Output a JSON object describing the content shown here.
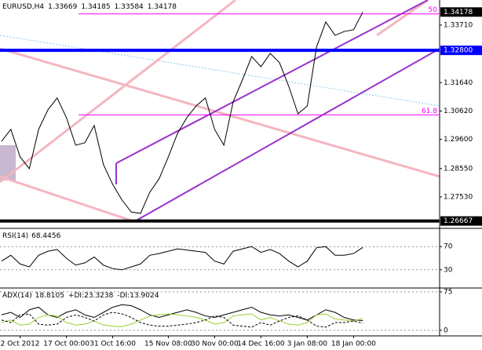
{
  "chart_data": [
    {
      "type": "line",
      "title": "EURUSD,H4",
      "ohlc": [
        1.33669,
        1.34185,
        1.33584,
        1.34178
      ],
      "categories": [
        null,
        null,
        "2 Oct 2012",
        null,
        null,
        null,
        null,
        "17 Oct 00:00",
        null,
        null,
        null,
        null,
        "31 Oct 16:00",
        null,
        null,
        null,
        null,
        null,
        "15 Nov 08:00",
        null,
        null,
        null,
        null,
        "30 Nov 00:00",
        null,
        null,
        null,
        null,
        "14 Dec 16:00",
        null,
        null,
        null,
        null,
        "3 Jan 08:00",
        null,
        null,
        null,
        null,
        "18 Jan 00:00",
        null
      ],
      "color": "#000000",
      "values": [
        1.2953,
        1.2996,
        1.2897,
        1.2855,
        1.2996,
        1.3066,
        1.3109,
        1.3038,
        1.2939,
        1.2948,
        1.301,
        1.2869,
        1.2798,
        1.2742,
        1.2699,
        1.2694,
        1.277,
        1.2818,
        1.2897,
        1.2982,
        1.3038,
        1.308,
        1.3109,
        1.2996,
        1.2939,
        1.3095,
        1.3174,
        1.3258,
        1.3221,
        1.3269,
        1.3236,
        1.3151,
        1.3052,
        1.308,
        1.3292,
        1.3382,
        1.3334,
        1.3348,
        1.3354,
        1.34178
      ],
      "ylim": [
        1.2643,
        1.3461
      ],
      "yticks": [
        {
          "value": 1.3371,
          "label": "1.33710"
        },
        {
          "value": 1.3164,
          "label": "1.31640"
        },
        {
          "value": 1.3062,
          "label": "1.30620"
        },
        {
          "value": 1.296,
          "label": "1.29600"
        },
        {
          "value": 1.2855,
          "label": "1.28550"
        },
        {
          "value": 1.2753,
          "label": "1.27530"
        }
      ],
      "hlines": [
        {
          "value": 1.328,
          "color": "#0000ff",
          "style": "thick"
        },
        {
          "value": 1.26667,
          "color": "#000000",
          "style": "thick"
        }
      ],
      "fib_color": "#ff00ff",
      "fib_levels": [
        {
          "level": 50,
          "value": 1.3411
        },
        {
          "level": 61.8,
          "value": 1.3048
        }
      ],
      "price_labels": [
        {
          "value": 1.34178,
          "color": "#000000"
        },
        {
          "value": 1.328,
          "label": "1.32800",
          "color": "#0000ff"
        },
        {
          "value": 1.26667,
          "color": "#000000"
        }
      ]
    },
    {
      "type": "line",
      "title": "RSI(14)",
      "color": "#000000",
      "values": [
        45,
        55,
        40,
        35,
        55,
        62,
        65,
        50,
        38,
        42,
        52,
        38,
        32,
        30,
        35,
        40,
        55,
        58,
        62,
        66,
        64,
        62,
        60,
        45,
        40,
        62,
        66,
        70,
        60,
        65,
        58,
        45,
        35,
        45,
        68,
        70,
        55,
        55,
        58,
        68.4456
      ],
      "ylim": [
        0,
        100
      ],
      "yticks": [
        70,
        30
      ],
      "grid": true
    },
    {
      "type": "line",
      "ylim": [
        -11,
        81
      ],
      "yticks": [
        75,
        0
      ],
      "grid": true,
      "series": [
        {
          "name": "ADX(14)",
          "color": "#000000",
          "dash": false,
          "values": [
            30,
            35,
            25,
            40,
            45,
            30,
            25,
            35,
            40,
            30,
            25,
            35,
            45,
            50,
            48,
            40,
            30,
            25,
            30,
            35,
            40,
            35,
            28,
            25,
            30,
            35,
            40,
            45,
            35,
            30,
            28,
            30,
            25,
            20,
            30,
            40,
            35,
            25,
            20,
            18.8105
          ]
        },
        {
          "name": "+DI:",
          "color": "#9acd32",
          "dash": false,
          "values": [
            15,
            20,
            10,
            12,
            25,
            30,
            28,
            15,
            10,
            12,
            18,
            10,
            8,
            7,
            12,
            20,
            28,
            30,
            32,
            30,
            28,
            25,
            20,
            12,
            15,
            28,
            30,
            32,
            20,
            25,
            18,
            12,
            10,
            15,
            30,
            32,
            22,
            20,
            18,
            23.3238
          ]
        },
        {
          "name": "-DI:",
          "color": "#000000",
          "dash": true,
          "values": [
            20,
            15,
            30,
            32,
            12,
            10,
            12,
            25,
            30,
            25,
            18,
            30,
            35,
            32,
            25,
            15,
            10,
            8,
            8,
            10,
            12,
            15,
            20,
            28,
            25,
            10,
            8,
            6,
            15,
            10,
            18,
            25,
            28,
            20,
            8,
            6,
            15,
            15,
            18,
            13.9024
          ]
        }
      ]
    }
  ]
}
